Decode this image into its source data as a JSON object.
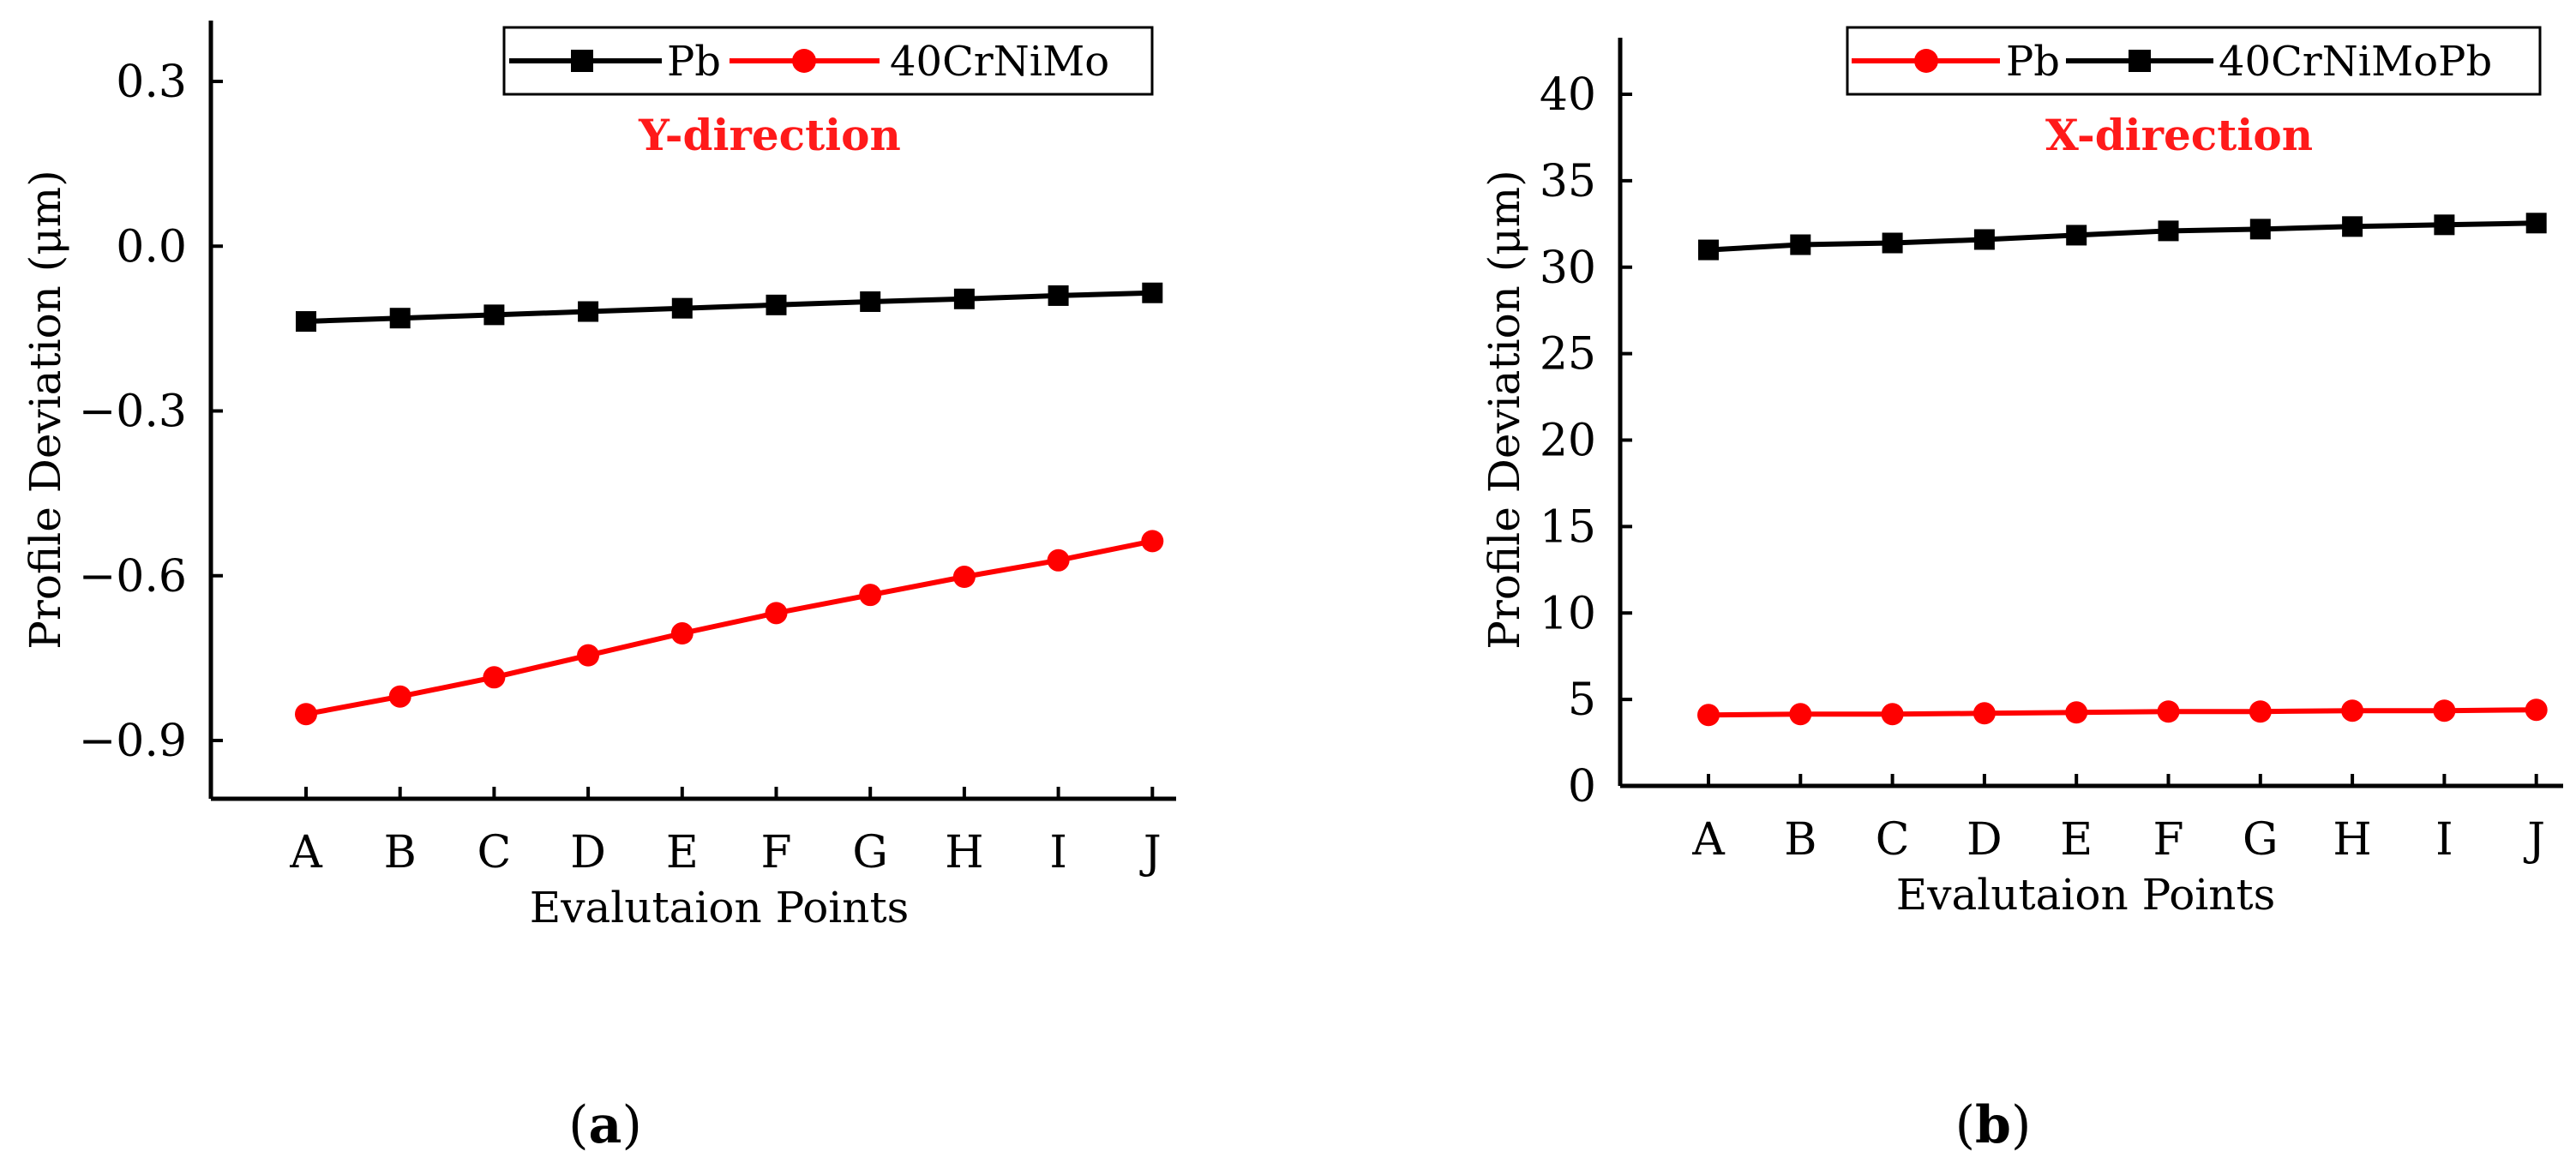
{
  "chart_data": [
    {
      "id": "a",
      "type": "line",
      "caption": "a",
      "annotation": "Y-direction",
      "annotation_color": "#ff1a1a",
      "xlabel": "Evalutaion Points",
      "ylabel": "Profile Deviation (μm)",
      "categories": [
        "A",
        "B",
        "C",
        "D",
        "E",
        "F",
        "G",
        "H",
        "I",
        "J"
      ],
      "ylim": [
        -1.0,
        0.4
      ],
      "yticks": [
        0.3,
        0.0,
        -0.3,
        -0.6,
        -0.9
      ],
      "ytick_labels": [
        "0.3",
        "0.0",
        "−0.3",
        "−0.6",
        "−0.9"
      ],
      "legend_position": "top-right",
      "grid": false,
      "series": [
        {
          "name": "Pb",
          "color": "#000000",
          "marker": "square",
          "values": [
            -0.137,
            -0.131,
            -0.125,
            -0.119,
            -0.113,
            -0.107,
            -0.101,
            -0.096,
            -0.09,
            -0.085
          ]
        },
        {
          "name": "40CrNiMo",
          "color": "#ff0000",
          "marker": "circle",
          "values": [
            -0.852,
            -0.82,
            -0.785,
            -0.745,
            -0.705,
            -0.668,
            -0.635,
            -0.602,
            -0.572,
            -0.537
          ]
        }
      ]
    },
    {
      "id": "b",
      "type": "line",
      "caption": "b",
      "annotation": "X-direction",
      "annotation_color": "#ff1a1a",
      "xlabel": "Evalutaion Points",
      "ylabel": "Profile Deviation (μm)",
      "categories": [
        "A",
        "B",
        "C",
        "D",
        "E",
        "F",
        "G",
        "H",
        "I",
        "J"
      ],
      "ylim": [
        0,
        43
      ],
      "yticks": [
        0,
        5,
        10,
        15,
        20,
        25,
        30,
        35,
        40
      ],
      "ytick_labels": [
        "0",
        "5",
        "10",
        "15",
        "20",
        "25",
        "30",
        "35",
        "40"
      ],
      "legend_position": "top-right",
      "grid": false,
      "series": [
        {
          "name": "Pb",
          "color": "#ff0000",
          "marker": "circle",
          "values": [
            4.1,
            4.15,
            4.15,
            4.2,
            4.25,
            4.3,
            4.3,
            4.35,
            4.35,
            4.4
          ]
        },
        {
          "name": "40CrNiMoPb",
          "color": "#000000",
          "marker": "square",
          "values": [
            31.0,
            31.3,
            31.4,
            31.6,
            31.85,
            32.1,
            32.2,
            32.35,
            32.45,
            32.55
          ]
        }
      ]
    }
  ]
}
